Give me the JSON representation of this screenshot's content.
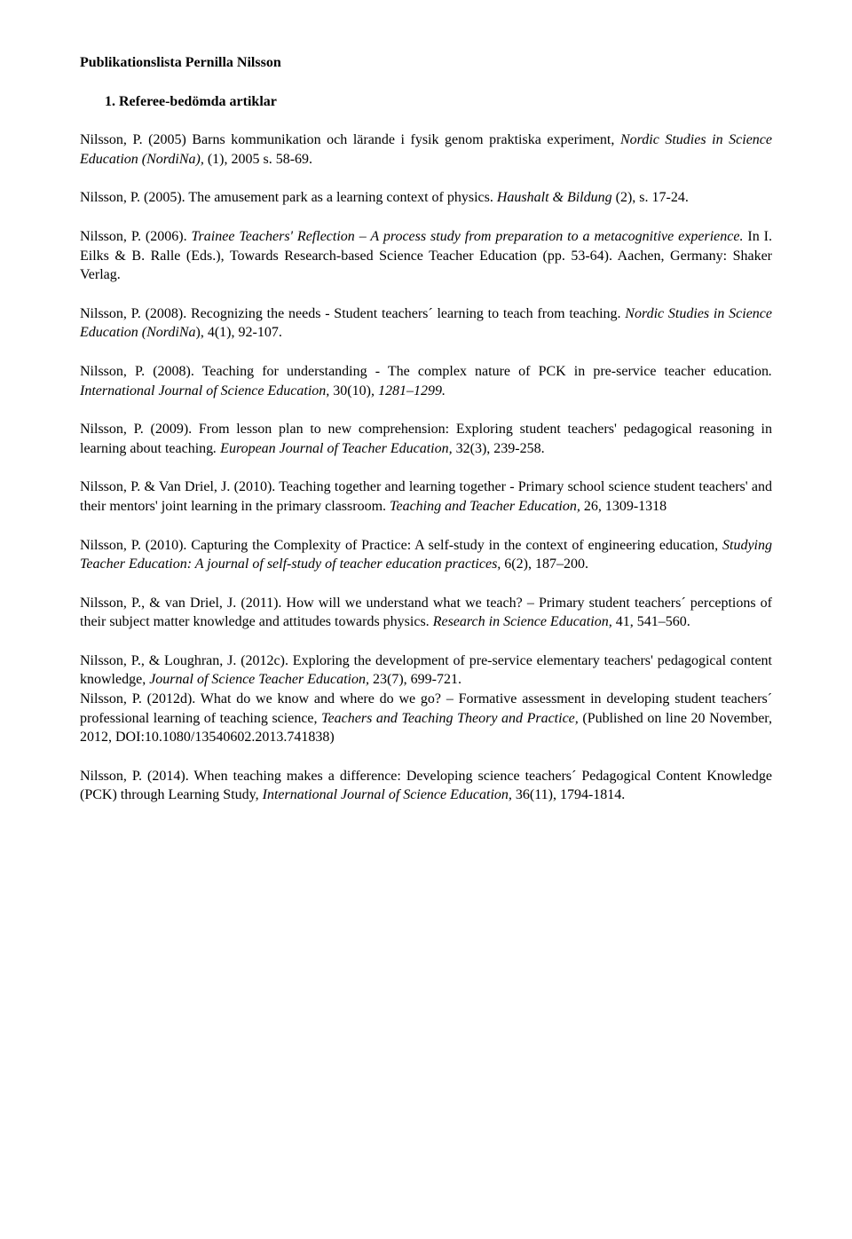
{
  "title": "Publikationslista Pernilla Nilsson",
  "section_heading": "1.  Referee-bedömda artiklar",
  "entries": [
    {
      "parts": [
        {
          "text": "Nilsson, P. (2005) Barns kommunikation och lärande i fysik genom praktiska experiment, "
        },
        {
          "text": "Nordic Studies in Science Education (NordiNa),",
          "italic": true
        },
        {
          "text": " (1), 2005 s. 58-69."
        }
      ]
    },
    {
      "parts": [
        {
          "text": "Nilsson, P. (2005). The amusement park as a learning context of physics. "
        },
        {
          "text": "Haushalt & Bildung",
          "italic": true
        },
        {
          "text": " (2), s. 17-24."
        }
      ]
    },
    {
      "parts": [
        {
          "text": "Nilsson, P. (2006). "
        },
        {
          "text": "Trainee Teachers' Reflection – A process study from preparation to a metacognitive experience.",
          "italic": true
        },
        {
          "text": " In I. Eilks & B. Ralle (Eds.), Towards Research-based Science Teacher Education (pp. 53-64). Aachen, Germany: Shaker Verlag."
        }
      ]
    },
    {
      "parts": [
        {
          "text": "Nilsson, P. (2008). Recognizing the needs - Student teachers´ learning to teach from teaching. "
        },
        {
          "text": "Nordic Studies in Science Education (NordiNa",
          "italic": true
        },
        {
          "text": "), 4(1), 92-107."
        }
      ]
    },
    {
      "parts": [
        {
          "text": "Nilsson, P. (2008). Teaching for understanding - The complex nature of PCK in pre-service teacher education"
        },
        {
          "text": ". International Journal of Science Education, ",
          "italic": true
        },
        {
          "text": "30(10)"
        },
        {
          "text": ", 1281–1299.",
          "italic": true
        }
      ]
    },
    {
      "parts": [
        {
          "text": "Nilsson, P. (2009). From lesson plan to new comprehension: Exploring student teachers' pedagogical reasoning in learning about teaching"
        },
        {
          "text": ". European Journal of Teacher Education, ",
          "italic": true
        },
        {
          "text": "32(3), 239-258."
        }
      ]
    },
    {
      "parts": [
        {
          "text": "Nilsson, P. & Van Driel, J. (2010). Teaching together and learning together - Primary school science student teachers' and their mentors' joint learning in the primary classroom. "
        },
        {
          "text": "Teaching and Teacher Education, ",
          "italic": true
        },
        {
          "text": "26, 1309-1318"
        }
      ]
    },
    {
      "parts": [
        {
          "text": "Nilsson, P. (2010). Capturing the Complexity of Practice: A self-study in the context of engineering education, "
        },
        {
          "text": "Studying Teacher Education: A journal of self-study of teacher education practices, ",
          "italic": true
        },
        {
          "text": "6(2), 187–200."
        }
      ]
    },
    {
      "parts": [
        {
          "text": "Nilsson, P., & van Driel, J. (2011). How will we understand what we teach? – Primary student teachers´ perceptions of their subject matter knowledge and attitudes towards physics. "
        },
        {
          "text": "Research in Science Education, ",
          "italic": true
        },
        {
          "text": "41"
        },
        {
          "text": ", 541–560."
        }
      ]
    },
    {
      "parts": [
        {
          "text": "Nilsson, P., & Loughran, J. (2012c). Exploring the development of pre-service elementary teachers' pedagogical content knowledge, "
        },
        {
          "text": "Journal of Science Teacher Education, ",
          "italic": true
        },
        {
          "text": "23(7), 699-721."
        }
      ],
      "tight": true
    },
    {
      "parts": [
        {
          "text": "Nilsson, P. (2012d). What do we know and where do we go? – Formative assessment in developing student teachers´ professional learning of teaching science, "
        },
        {
          "text": "Teachers and Teaching Theory and Practice, ",
          "italic": true
        },
        {
          "text": "(Published on line 20 November, 2012, DOI:10.1080/13540602.2013.741838)"
        }
      ]
    },
    {
      "parts": [
        {
          "text": "Nilsson, P. (2014). When teaching makes a difference: Developing science teachers´ Pedagogical Content Knowledge (PCK) through Learning Study, "
        },
        {
          "text": "International Journal of Science Education, ",
          "italic": true
        },
        {
          "text": "36(11), 1794-1814."
        }
      ]
    }
  ]
}
